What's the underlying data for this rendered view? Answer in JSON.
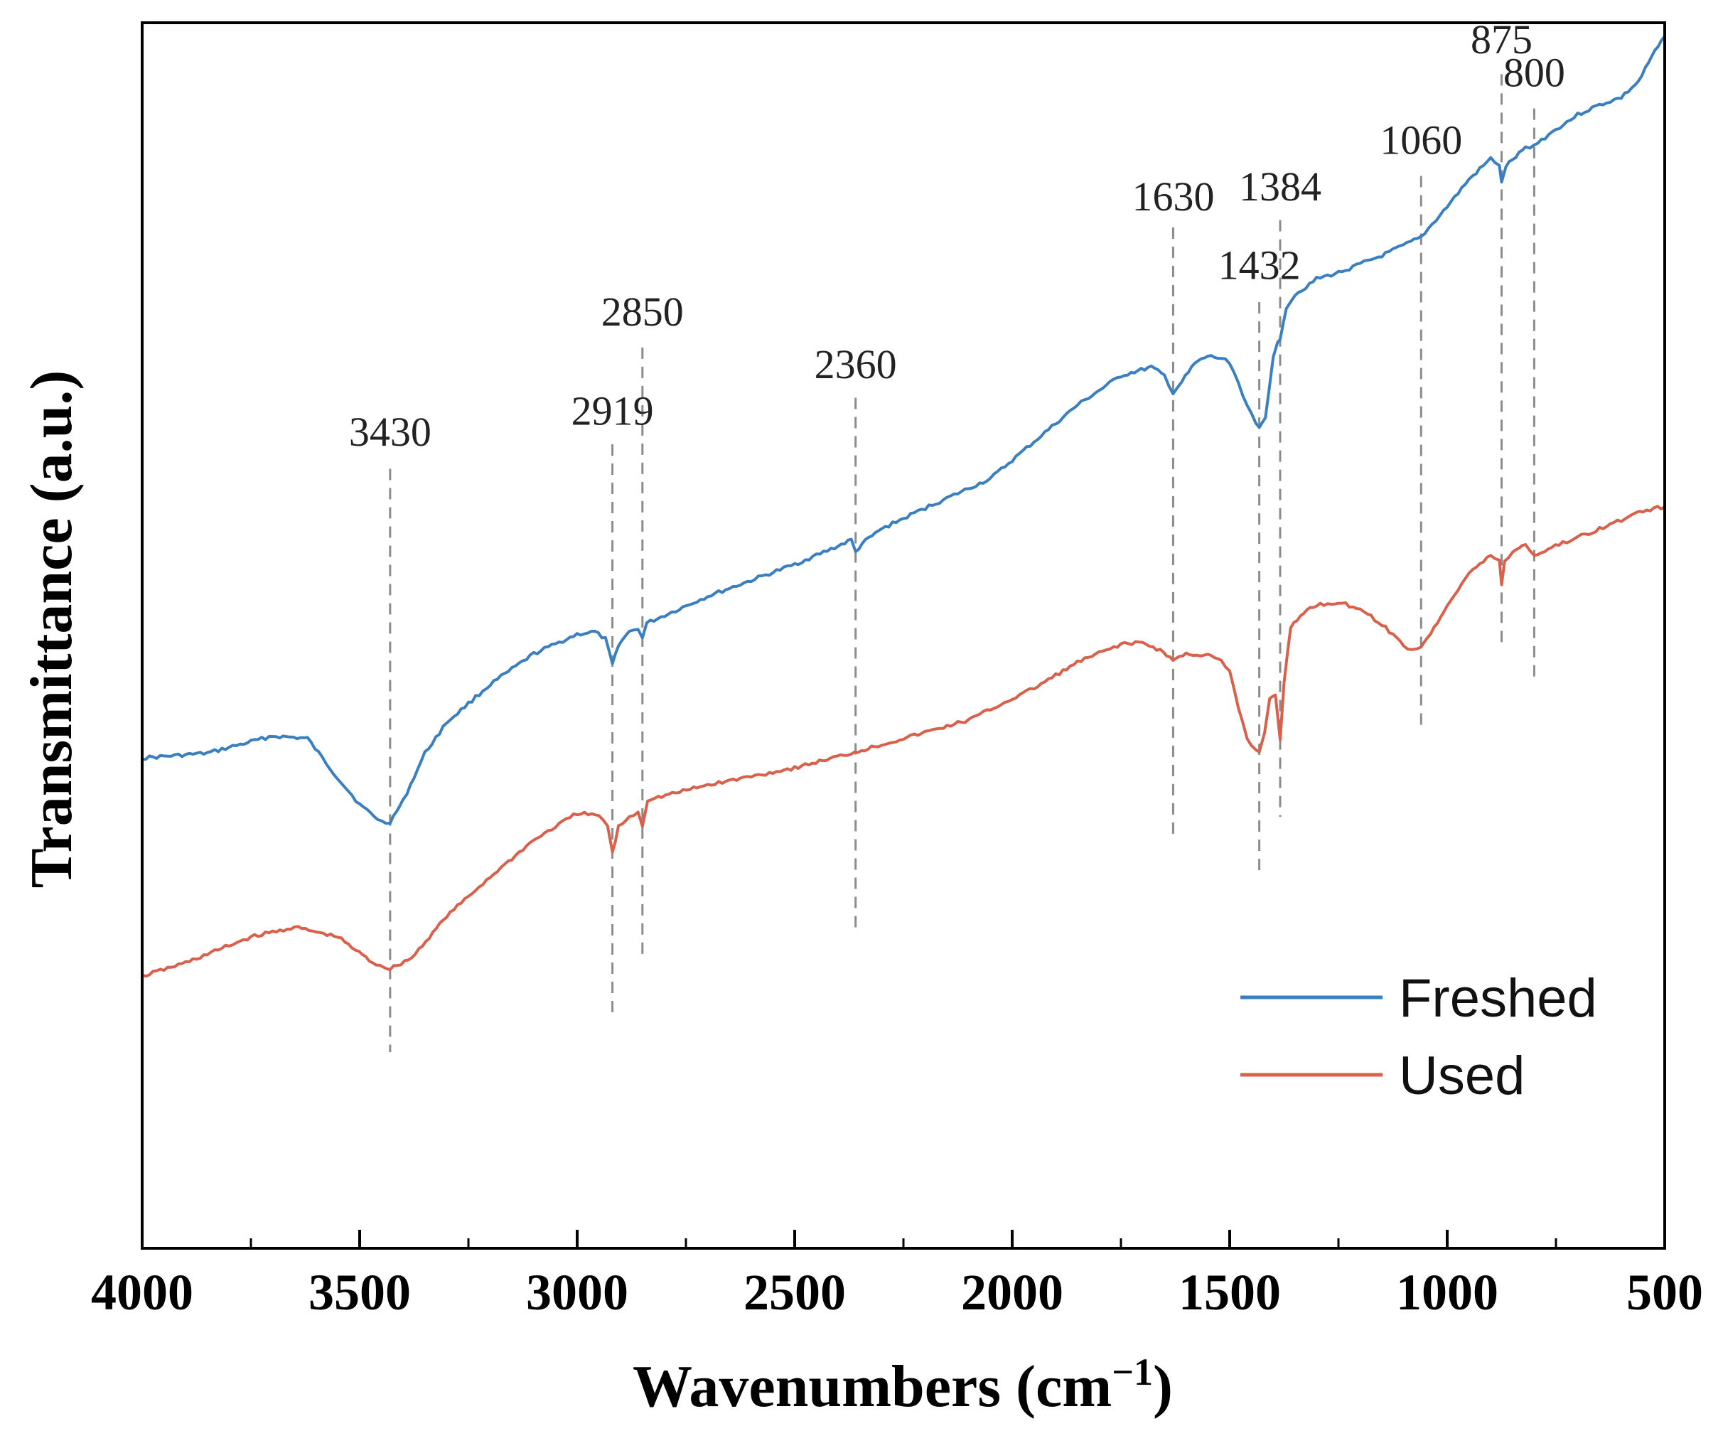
{
  "chart_data": {
    "type": "line",
    "title": "",
    "xlabel": "Wavenumbers (cm",
    "xlabel_sup": "−1",
    "xlabel_close": ")",
    "ylabel": "Transmittance (a.u.)",
    "xlim": [
      4000,
      500
    ],
    "ylim": [
      0,
      100
    ],
    "x_ticks": [
      4000,
      3500,
      3000,
      2500,
      2000,
      1500,
      1000,
      500
    ],
    "x_tick_labels": [
      "4000",
      "3500",
      "3000",
      "2500",
      "2000",
      "1500",
      "1000",
      "500"
    ],
    "legend_position": "bottom-right",
    "colors": {
      "Freshed": "#3a7fc0",
      "Used": "#d9604a",
      "guide": "#8c8c8c",
      "axis": "#000000"
    },
    "series": [
      {
        "name": "Freshed",
        "points": [
          [
            4000,
            40.0
          ],
          [
            3850,
            40.4
          ],
          [
            3700,
            41.8
          ],
          [
            3620,
            41.6
          ],
          [
            3560,
            38.8
          ],
          [
            3500,
            36.2
          ],
          [
            3450,
            34.8
          ],
          [
            3430,
            34.8
          ],
          [
            3400,
            36.5
          ],
          [
            3350,
            40.4
          ],
          [
            3300,
            42.9
          ],
          [
            3200,
            46.0
          ],
          [
            3100,
            48.5
          ],
          [
            3000,
            50.1
          ],
          [
            2960,
            50.3
          ],
          [
            2935,
            49.7
          ],
          [
            2919,
            47.6
          ],
          [
            2905,
            49.3
          ],
          [
            2880,
            50.3
          ],
          [
            2860,
            50.6
          ],
          [
            2850,
            49.8
          ],
          [
            2840,
            51.0
          ],
          [
            2700,
            53.2
          ],
          [
            2500,
            55.8
          ],
          [
            2400,
            57.3
          ],
          [
            2370,
            57.8
          ],
          [
            2360,
            56.8
          ],
          [
            2345,
            57.5
          ],
          [
            2300,
            58.7
          ],
          [
            2200,
            60.4
          ],
          [
            2050,
            62.8
          ],
          [
            1950,
            65.8
          ],
          [
            1850,
            68.8
          ],
          [
            1750,
            71.2
          ],
          [
            1680,
            71.9
          ],
          [
            1650,
            71.2
          ],
          [
            1630,
            69.8
          ],
          [
            1610,
            70.7
          ],
          [
            1580,
            72.2
          ],
          [
            1550,
            72.8
          ],
          [
            1520,
            72.6
          ],
          [
            1500,
            72.3
          ],
          [
            1480,
            70.6
          ],
          [
            1460,
            68.8
          ],
          [
            1440,
            67.2
          ],
          [
            1432,
            66.9
          ],
          [
            1418,
            67.8
          ],
          [
            1400,
            72.8
          ],
          [
            1390,
            73.8
          ],
          [
            1384,
            74.3
          ],
          [
            1370,
            76.8
          ],
          [
            1350,
            77.8
          ],
          [
            1300,
            79.1
          ],
          [
            1250,
            79.6
          ],
          [
            1150,
            81.0
          ],
          [
            1060,
            82.5
          ],
          [
            1000,
            85.0
          ],
          [
            950,
            87.2
          ],
          [
            900,
            88.9
          ],
          [
            880,
            88.4
          ],
          [
            875,
            86.9
          ],
          [
            865,
            88.3
          ],
          [
            820,
            89.8
          ],
          [
            800,
            90.0
          ],
          [
            750,
            91.3
          ],
          [
            700,
            92.5
          ],
          [
            650,
            93.3
          ],
          [
            600,
            93.9
          ],
          [
            560,
            95.2
          ],
          [
            530,
            97.2
          ],
          [
            500,
            98.9
          ]
        ]
      },
      {
        "name": "Used",
        "points": [
          [
            4000,
            22.2
          ],
          [
            3900,
            23.3
          ],
          [
            3750,
            25.4
          ],
          [
            3650,
            26.2
          ],
          [
            3550,
            25.4
          ],
          [
            3470,
            23.3
          ],
          [
            3430,
            22.8
          ],
          [
            3380,
            23.7
          ],
          [
            3300,
            27.1
          ],
          [
            3200,
            30.3
          ],
          [
            3100,
            33.3
          ],
          [
            3000,
            35.5
          ],
          [
            2950,
            35.3
          ],
          [
            2930,
            34.5
          ],
          [
            2919,
            32.2
          ],
          [
            2905,
            34.4
          ],
          [
            2880,
            35.2
          ],
          [
            2860,
            35.6
          ],
          [
            2850,
            34.5
          ],
          [
            2838,
            36.6
          ],
          [
            2700,
            37.8
          ],
          [
            2500,
            39.2
          ],
          [
            2370,
            40.4
          ],
          [
            2300,
            41.1
          ],
          [
            2100,
            43.1
          ],
          [
            1950,
            45.7
          ],
          [
            1850,
            47.8
          ],
          [
            1750,
            49.3
          ],
          [
            1700,
            49.4
          ],
          [
            1660,
            48.8
          ],
          [
            1630,
            48.0
          ],
          [
            1600,
            48.5
          ],
          [
            1550,
            48.4
          ],
          [
            1520,
            47.9
          ],
          [
            1500,
            47.0
          ],
          [
            1480,
            44.1
          ],
          [
            1460,
            41.6
          ],
          [
            1440,
            40.6
          ],
          [
            1432,
            40.6
          ],
          [
            1420,
            42.1
          ],
          [
            1408,
            44.8
          ],
          [
            1395,
            45.2
          ],
          [
            1384,
            41.6
          ],
          [
            1375,
            46.2
          ],
          [
            1360,
            50.6
          ],
          [
            1330,
            51.9
          ],
          [
            1300,
            52.5
          ],
          [
            1250,
            52.7
          ],
          [
            1200,
            52.2
          ],
          [
            1150,
            50.9
          ],
          [
            1100,
            49.2
          ],
          [
            1080,
            48.8
          ],
          [
            1060,
            49.1
          ],
          [
            1030,
            50.6
          ],
          [
            1000,
            52.5
          ],
          [
            950,
            55.1
          ],
          [
            900,
            56.5
          ],
          [
            880,
            56.2
          ],
          [
            875,
            54.1
          ],
          [
            868,
            56.0
          ],
          [
            850,
            56.8
          ],
          [
            820,
            57.5
          ],
          [
            800,
            56.5
          ],
          [
            760,
            57.2
          ],
          [
            700,
            58.0
          ],
          [
            600,
            59.4
          ],
          [
            550,
            60.2
          ],
          [
            500,
            60.5
          ]
        ]
      }
    ],
    "peaks": [
      {
        "label": "3430",
        "wavenumber": 3430,
        "label_value": 65.5,
        "line_top": 63.6,
        "line_bottom": 16.0
      },
      {
        "label": "2919",
        "wavenumber": 2919,
        "label_value": 67.2,
        "line_top": 65.6,
        "line_bottom": 19.0
      },
      {
        "label": "2850",
        "wavenumber": 2850,
        "label_value": 75.3,
        "line_top": 73.5,
        "line_bottom": 23.8
      },
      {
        "label": "2360",
        "wavenumber": 2360,
        "label_value": 71.0,
        "line_top": 69.4,
        "line_bottom": 26.0
      },
      {
        "label": "1630",
        "wavenumber": 1630,
        "label_value": 84.7,
        "line_top": 83.3,
        "line_bottom": 33.2
      },
      {
        "label": "1432",
        "wavenumber": 1432,
        "label_value": 79.1,
        "line_top": 77.2,
        "line_bottom": 30.6
      },
      {
        "label": "1384",
        "wavenumber": 1384,
        "label_value": 85.5,
        "line_top": 83.9,
        "line_bottom": 35.2
      },
      {
        "label": "1060",
        "wavenumber": 1060,
        "label_value": 89.3,
        "line_top": 87.5,
        "line_bottom": 42.5
      },
      {
        "label": "875",
        "wavenumber": 875,
        "label_value": 97.5,
        "line_top": 95.8,
        "line_bottom": 49.0
      },
      {
        "label": "800",
        "wavenumber": 800,
        "label_value": 94.8,
        "line_top": 93.0,
        "line_bottom": 46.2
      }
    ]
  }
}
